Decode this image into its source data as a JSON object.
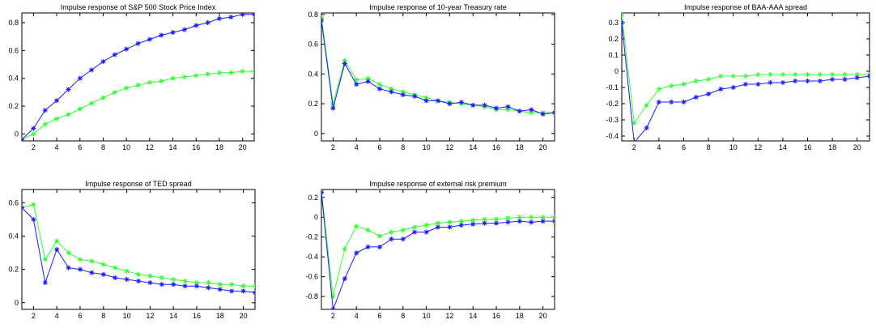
{
  "colors": {
    "blue": "#1a1aff",
    "green": "#33ff33",
    "axis": "#000000"
  },
  "chart_data": [
    {
      "type": "line",
      "title": "Impulse response of S&P 500 Stock Price Index",
      "x": [
        1,
        2,
        3,
        4,
        5,
        6,
        7,
        8,
        9,
        10,
        11,
        12,
        13,
        14,
        15,
        16,
        17,
        18,
        19,
        20,
        21
      ],
      "xlim": [
        1,
        21
      ],
      "ylim": [
        -0.05,
        0.87
      ],
      "xticks": [
        2,
        4,
        6,
        8,
        10,
        12,
        14,
        16,
        18,
        20
      ],
      "yticks": [
        0,
        0.2,
        0.4,
        0.6,
        0.8
      ],
      "yticklabels": [
        "0",
        "0.2",
        "0.4",
        "0.6",
        "0.8"
      ],
      "series": [
        {
          "color": "blue",
          "marker": "star",
          "values": [
            -0.04,
            0.04,
            0.17,
            0.24,
            0.32,
            0.4,
            0.46,
            0.52,
            0.57,
            0.61,
            0.65,
            0.68,
            0.71,
            0.73,
            0.75,
            0.78,
            0.8,
            0.83,
            0.84,
            0.86,
            0.86
          ]
        },
        {
          "color": "green",
          "marker": "star",
          "values": [
            -0.04,
            0.0,
            0.07,
            0.11,
            0.14,
            0.18,
            0.22,
            0.26,
            0.3,
            0.33,
            0.35,
            0.37,
            0.38,
            0.4,
            0.41,
            0.42,
            0.43,
            0.44,
            0.44,
            0.45,
            0.45
          ]
        }
      ]
    },
    {
      "type": "line",
      "title": "Impulse response of 10-year Treasury rate",
      "x": [
        1,
        2,
        3,
        4,
        5,
        6,
        7,
        8,
        9,
        10,
        11,
        12,
        13,
        14,
        15,
        16,
        17,
        18,
        19,
        20,
        21
      ],
      "xlim": [
        1,
        21
      ],
      "ylim": [
        -0.05,
        0.81
      ],
      "xticks": [
        2,
        4,
        6,
        8,
        10,
        12,
        14,
        16,
        18,
        20
      ],
      "yticks": [
        0,
        0.2,
        0.4,
        0.6,
        0.8
      ],
      "yticklabels": [
        "0",
        "0.2",
        "0.4",
        "0.6",
        "0.8"
      ],
      "series": [
        {
          "color": "blue",
          "marker": "star",
          "values": [
            0.76,
            0.17,
            0.47,
            0.33,
            0.35,
            0.3,
            0.28,
            0.26,
            0.25,
            0.22,
            0.22,
            0.2,
            0.21,
            0.19,
            0.19,
            0.17,
            0.18,
            0.15,
            0.16,
            0.13,
            0.14
          ]
        },
        {
          "color": "green",
          "marker": "star",
          "values": [
            0.78,
            0.2,
            0.49,
            0.36,
            0.37,
            0.33,
            0.3,
            0.28,
            0.26,
            0.24,
            0.22,
            0.21,
            0.2,
            0.19,
            0.18,
            0.16,
            0.16,
            0.15,
            0.14,
            0.14,
            0.14
          ]
        }
      ]
    },
    {
      "type": "line",
      "title": "Impulse response of BAA-AAA spread",
      "x": [
        1,
        2,
        3,
        4,
        5,
        6,
        7,
        8,
        9,
        10,
        11,
        12,
        13,
        14,
        15,
        16,
        17,
        18,
        19,
        20,
        21
      ],
      "xlim": [
        1,
        21
      ],
      "ylim": [
        -0.43,
        0.36
      ],
      "xticks": [
        2,
        4,
        6,
        8,
        10,
        12,
        14,
        16,
        18,
        20
      ],
      "yticks": [
        -0.4,
        -0.3,
        -0.2,
        -0.1,
        0,
        0.1,
        0.2,
        0.3
      ],
      "yticklabels": [
        "-0.4",
        "-0.3",
        "-0.2",
        "-0.1",
        "0",
        "0.1",
        "0.2",
        "0.3"
      ],
      "series": [
        {
          "color": "blue",
          "marker": "star",
          "values": [
            0.3,
            -0.44,
            -0.35,
            -0.19,
            -0.19,
            -0.19,
            -0.16,
            -0.14,
            -0.11,
            -0.1,
            -0.08,
            -0.08,
            -0.07,
            -0.07,
            -0.06,
            -0.06,
            -0.06,
            -0.05,
            -0.05,
            -0.04,
            -0.03
          ]
        },
        {
          "color": "green",
          "marker": "star",
          "values": [
            0.35,
            -0.32,
            -0.21,
            -0.11,
            -0.09,
            -0.08,
            -0.06,
            -0.05,
            -0.03,
            -0.03,
            -0.03,
            -0.02,
            -0.02,
            -0.02,
            -0.02,
            -0.02,
            -0.02,
            -0.02,
            -0.02,
            -0.02,
            -0.02
          ]
        }
      ]
    },
    {
      "type": "line",
      "title": "Impulse response of TED spread",
      "x": [
        1,
        2,
        3,
        4,
        5,
        6,
        7,
        8,
        9,
        10,
        11,
        12,
        13,
        14,
        15,
        16,
        17,
        18,
        19,
        20,
        21
      ],
      "xlim": [
        1,
        21
      ],
      "ylim": [
        -0.04,
        0.68
      ],
      "xticks": [
        2,
        4,
        6,
        8,
        10,
        12,
        14,
        16,
        18,
        20
      ],
      "yticks": [
        0,
        0.2,
        0.4,
        0.6
      ],
      "yticklabels": [
        "0",
        "0.2",
        "0.4",
        "0.6"
      ],
      "series": [
        {
          "color": "blue",
          "marker": "star",
          "values": [
            0.57,
            0.5,
            0.12,
            0.32,
            0.21,
            0.2,
            0.18,
            0.17,
            0.15,
            0.14,
            0.13,
            0.12,
            0.11,
            0.11,
            0.1,
            0.1,
            0.09,
            0.08,
            0.07,
            0.07,
            0.06
          ]
        },
        {
          "color": "green",
          "marker": "star",
          "values": [
            0.57,
            0.59,
            0.26,
            0.37,
            0.3,
            0.26,
            0.25,
            0.23,
            0.21,
            0.19,
            0.17,
            0.16,
            0.15,
            0.14,
            0.13,
            0.12,
            0.12,
            0.11,
            0.11,
            0.1,
            0.1
          ]
        }
      ]
    },
    {
      "type": "line",
      "title": "Impulse response of external risk premium",
      "x": [
        1,
        2,
        3,
        4,
        5,
        6,
        7,
        8,
        9,
        10,
        11,
        12,
        13,
        14,
        15,
        16,
        17,
        18,
        19,
        20,
        21
      ],
      "xlim": [
        1,
        21
      ],
      "ylim": [
        -0.93,
        0.28
      ],
      "xticks": [
        2,
        4,
        6,
        8,
        10,
        12,
        14,
        16,
        18,
        20
      ],
      "yticks": [
        -0.8,
        -0.6,
        -0.4,
        -0.2,
        0,
        0.2
      ],
      "yticklabels": [
        "-0.8",
        "-0.6",
        "-0.4",
        "-0.2",
        "0",
        "0.2"
      ],
      "series": [
        {
          "color": "blue",
          "marker": "star",
          "values": [
            0.25,
            -0.93,
            -0.62,
            -0.36,
            -0.3,
            -0.3,
            -0.22,
            -0.22,
            -0.15,
            -0.15,
            -0.1,
            -0.1,
            -0.08,
            -0.07,
            -0.06,
            -0.06,
            -0.05,
            -0.04,
            -0.05,
            -0.04,
            -0.04
          ]
        },
        {
          "color": "green",
          "marker": "star",
          "values": [
            0.27,
            -0.8,
            -0.32,
            -0.09,
            -0.13,
            -0.19,
            -0.15,
            -0.13,
            -0.1,
            -0.08,
            -0.06,
            -0.05,
            -0.04,
            -0.03,
            -0.02,
            -0.02,
            -0.01,
            0.0,
            0.0,
            0.0,
            0.0
          ]
        }
      ]
    }
  ]
}
